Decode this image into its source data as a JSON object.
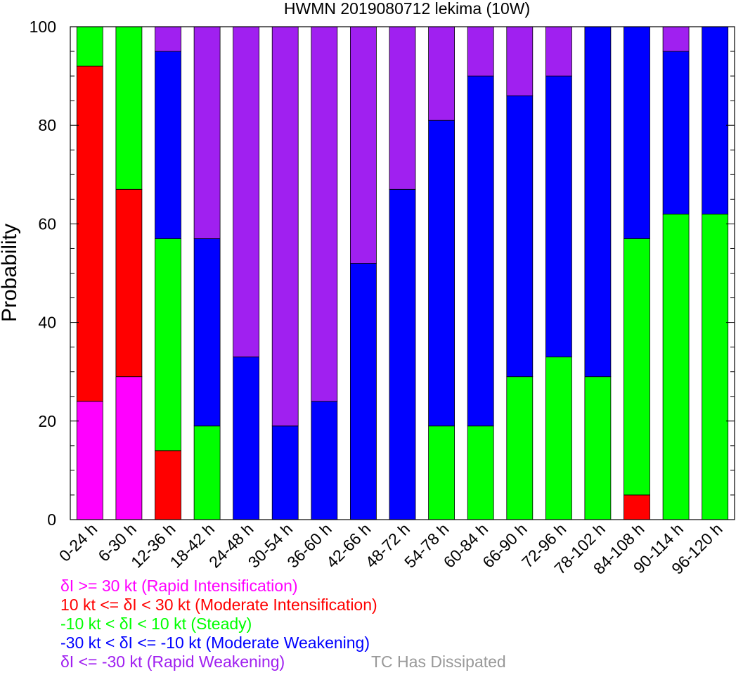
{
  "chart_data": {
    "type": "bar",
    "stacked": true,
    "title": "HWMN 2019080712 lekima (10W)",
    "ylabel": "Probability",
    "xlabel": "",
    "ylim": [
      0,
      100
    ],
    "yticks": [
      0,
      20,
      40,
      60,
      80,
      100
    ],
    "grid": false,
    "categories": [
      "0-24 h",
      "6-30 h",
      "12-36 h",
      "18-42 h",
      "24-48 h",
      "30-54 h",
      "36-60 h",
      "42-66 h",
      "48-72 h",
      "54-78 h",
      "60-84 h",
      "66-90 h",
      "72-96 h",
      "78-102 h",
      "84-108 h",
      "90-114 h",
      "96-120 h"
    ],
    "series": [
      {
        "name": "δI >= 30 kt (Rapid Intensification)",
        "color": "#ff00ff",
        "values": [
          24,
          29,
          0,
          0,
          0,
          0,
          0,
          0,
          0,
          0,
          0,
          0,
          0,
          0,
          0,
          0,
          0
        ]
      },
      {
        "name": "10 kt <= δI < 30 kt (Moderate Intensification)",
        "color": "#ff0000",
        "values": [
          68,
          38,
          14,
          0,
          0,
          0,
          0,
          0,
          0,
          0,
          0,
          0,
          0,
          0,
          5,
          0,
          0
        ]
      },
      {
        "name": "-10 kt < δI < 10 kt (Steady)",
        "color": "#00ff00",
        "values": [
          8,
          33,
          43,
          19,
          0,
          0,
          0,
          0,
          0,
          19,
          19,
          29,
          33,
          29,
          52,
          62,
          62
        ]
      },
      {
        "name": "-30 kt < δI <= -10 kt (Moderate Weakening)",
        "color": "#0000ff",
        "values": [
          0,
          0,
          38,
          38,
          33,
          19,
          24,
          52,
          67,
          62,
          71,
          57,
          57,
          71,
          43,
          33,
          38
        ]
      },
      {
        "name": "δI <= -30 kt (Rapid Weakening)",
        "color": "#a020f0",
        "values": [
          0,
          0,
          5,
          43,
          67,
          81,
          76,
          48,
          33,
          19,
          10,
          14,
          10,
          0,
          0,
          5,
          0
        ]
      }
    ],
    "legend": {
      "placement": "bottom-left",
      "dissipated_label": "TC Has Dissipated",
      "dissipated_color": "#999999"
    }
  }
}
